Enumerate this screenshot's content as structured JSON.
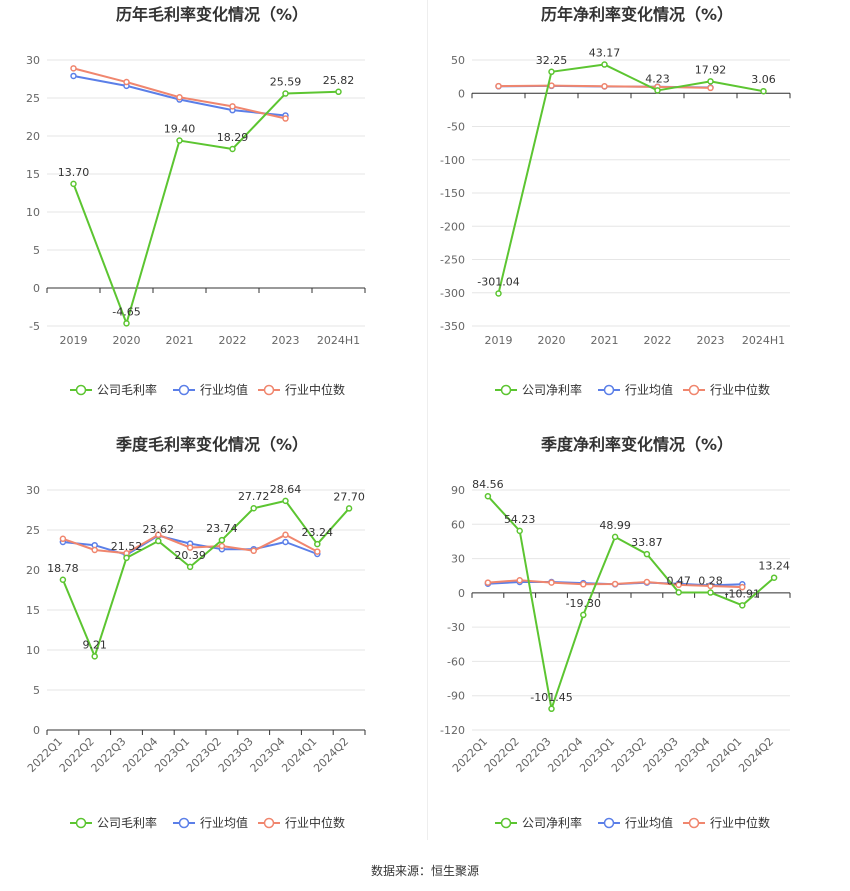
{
  "colors": {
    "company": "#5cc531",
    "avg": "#5b7fe8",
    "median": "#f0866e",
    "grid": "#e6e6e6",
    "axis": "#333333"
  },
  "chart_data": [
    {
      "type": "line",
      "title": "历年毛利率变化情况（%）",
      "categories": [
        "2019",
        "2020",
        "2021",
        "2022",
        "2023",
        "2024H1"
      ],
      "ylim": [
        -5,
        30
      ],
      "yticks": [
        -5,
        0,
        5,
        10,
        15,
        20,
        25,
        30
      ],
      "rotate_x": false,
      "grid": true,
      "legend_position": "bottom",
      "series": [
        {
          "name": "公司毛利率",
          "key": "company",
          "values": [
            13.7,
            -4.65,
            19.4,
            18.29,
            25.59,
            25.82
          ],
          "labels": [
            "13.70",
            "-4.65",
            "19.40",
            "18.29",
            "25.59",
            "25.82"
          ]
        },
        {
          "name": "行业均值",
          "key": "avg",
          "values": [
            27.9,
            26.6,
            24.8,
            23.4,
            22.7,
            null
          ]
        },
        {
          "name": "行业中位数",
          "key": "median",
          "values": [
            28.9,
            27.1,
            25.1,
            23.9,
            22.3,
            null
          ]
        }
      ]
    },
    {
      "type": "line",
      "title": "历年净利率变化情况（%）",
      "categories": [
        "2019",
        "2020",
        "2021",
        "2022",
        "2023",
        "2024H1"
      ],
      "ylim": [
        -350,
        50
      ],
      "yticks": [
        -350,
        -300,
        -250,
        -200,
        -150,
        -100,
        -50,
        0,
        50
      ],
      "rotate_x": false,
      "grid": true,
      "legend_position": "bottom",
      "series": [
        {
          "name": "公司净利率",
          "key": "company",
          "values": [
            -301.04,
            32.25,
            43.17,
            4.23,
            17.92,
            3.06
          ],
          "labels": [
            "-301.04",
            "32.25",
            "43.17",
            "4.23",
            "17.92",
            "3.06"
          ]
        },
        {
          "name": "行业均值",
          "key": "avg",
          "values": [
            10.5,
            11.0,
            10.2,
            9.8,
            8.6,
            null
          ]
        },
        {
          "name": "行业中位数",
          "key": "median",
          "values": [
            10.8,
            11.5,
            10.5,
            9.5,
            8.0,
            null
          ]
        }
      ]
    },
    {
      "type": "line",
      "title": "季度毛利率变化情况（%）",
      "categories": [
        "2022Q1",
        "2022Q2",
        "2022Q3",
        "2022Q4",
        "2023Q1",
        "2023Q2",
        "2023Q3",
        "2023Q4",
        "2024Q1",
        "2024Q2"
      ],
      "ylim": [
        0,
        30
      ],
      "yticks": [
        0,
        5,
        10,
        15,
        20,
        25,
        30
      ],
      "rotate_x": true,
      "grid": true,
      "legend_position": "bottom",
      "series": [
        {
          "name": "公司毛利率",
          "key": "company",
          "values": [
            18.78,
            9.21,
            21.52,
            23.62,
            20.39,
            23.74,
            27.72,
            28.64,
            23.24,
            27.7
          ],
          "labels": [
            "18.78",
            "9.21",
            "21.52",
            "23.62",
            "20.39",
            "23.74",
            "27.72",
            "28.64",
            "23.24",
            "27.70"
          ]
        },
        {
          "name": "行业均值",
          "key": "avg",
          "values": [
            23.5,
            23.1,
            21.9,
            24.3,
            23.3,
            22.6,
            22.6,
            23.5,
            22.0,
            null
          ]
        },
        {
          "name": "行业中位数",
          "key": "median",
          "values": [
            23.9,
            22.5,
            22.1,
            24.4,
            22.8,
            23.0,
            22.4,
            24.4,
            22.3,
            null
          ]
        }
      ]
    },
    {
      "type": "line",
      "title": "季度净利率变化情况（%）",
      "categories": [
        "2022Q1",
        "2022Q2",
        "2022Q3",
        "2022Q4",
        "2023Q1",
        "2023Q2",
        "2023Q3",
        "2023Q4",
        "2024Q1",
        "2024Q2"
      ],
      "ylim": [
        -120,
        90
      ],
      "yticks": [
        -120,
        -90,
        -60,
        -30,
        0,
        30,
        60,
        90
      ],
      "rotate_x": true,
      "grid": true,
      "legend_position": "bottom",
      "series": [
        {
          "name": "公司净利率",
          "key": "company",
          "values": [
            84.56,
            54.23,
            -101.45,
            -19.3,
            48.99,
            33.87,
            0.47,
            0.28,
            -10.91,
            13.24
          ],
          "labels": [
            "84.56",
            "54.23",
            "-101.45",
            "-19.30",
            "48.99",
            "33.87",
            "0.47",
            "0.28",
            "-10.91",
            "13.24"
          ]
        },
        {
          "name": "行业均值",
          "key": "avg",
          "values": [
            8.0,
            9.5,
            9.5,
            8.5,
            7.5,
            9.0,
            8.0,
            6.5,
            7.5,
            null
          ]
        },
        {
          "name": "行业中位数",
          "key": "median",
          "values": [
            9.0,
            11.0,
            9.0,
            7.5,
            7.8,
            9.5,
            7.0,
            6.0,
            5.0,
            null
          ]
        }
      ]
    }
  ],
  "footer": {
    "source": "数据来源：恒生聚源"
  }
}
